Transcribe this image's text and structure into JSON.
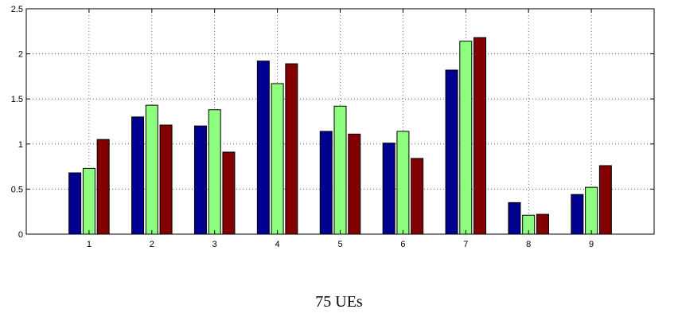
{
  "caption": "75 UEs",
  "chart_data": {
    "type": "bar",
    "categories": [
      "1",
      "2",
      "3",
      "4",
      "5",
      "6",
      "7",
      "8",
      "9"
    ],
    "series": [
      {
        "values": [
          0.68,
          1.3,
          1.2,
          1.92,
          1.14,
          1.01,
          1.82,
          0.35,
          0.44
        ],
        "color": "#000090"
      },
      {
        "values": [
          0.73,
          1.43,
          1.38,
          1.67,
          1.42,
          1.14,
          2.14,
          0.21,
          0.52
        ],
        "color": "#8efe7e"
      },
      {
        "values": [
          1.05,
          1.21,
          0.91,
          1.89,
          1.11,
          0.84,
          2.18,
          0.22,
          0.76
        ],
        "color": "#820000"
      }
    ],
    "ylim": [
      0,
      2.5
    ],
    "yticks": [
      "0",
      "0.5",
      "1",
      "1.5",
      "2",
      "2.5"
    ],
    "xlim": [
      0,
      10
    ],
    "grid": true
  }
}
